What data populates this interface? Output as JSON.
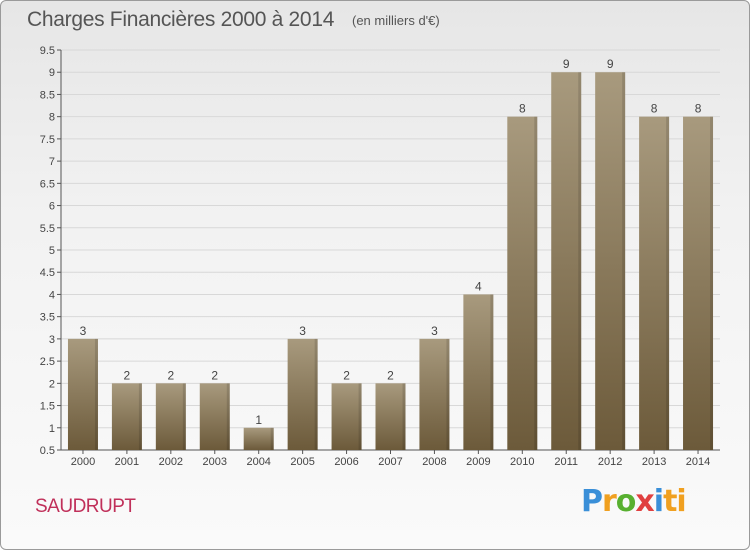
{
  "header": {
    "title": "Charges Financières 2000 à 2014",
    "subtitle": "(en milliers d'€)"
  },
  "footer": {
    "place": "SAUDRUPT",
    "logo": [
      "P",
      "r",
      "o",
      "x",
      "i",
      "ti"
    ]
  },
  "colors": {
    "bar_top": "#a89a7e",
    "bar_bottom": "#6c5a3a",
    "grid": "#d8d8d8",
    "place": "#c0305a"
  },
  "chart_data": {
    "type": "bar",
    "categories": [
      "2000",
      "2001",
      "2002",
      "2003",
      "2004",
      "2005",
      "2006",
      "2007",
      "2008",
      "2009",
      "2010",
      "2011",
      "2012",
      "2013",
      "2014"
    ],
    "values": [
      3,
      2,
      2,
      2,
      1,
      3,
      2,
      2,
      3,
      4,
      8,
      9,
      9,
      8,
      8
    ],
    "data_labels": [
      "3",
      "2",
      "2",
      "2",
      "1",
      "3",
      "2",
      "2",
      "3",
      "4",
      "8",
      "9",
      "9",
      "8",
      "8"
    ],
    "ylim": [
      0.5,
      9.5
    ],
    "yticks": [
      "0.5",
      "1",
      "1.5",
      "2",
      "2.5",
      "3",
      "3.5",
      "4",
      "4.5",
      "5",
      "5.5",
      "6",
      "6.5",
      "7",
      "7.5",
      "8",
      "8.5",
      "9",
      "9.5"
    ],
    "grid": true
  }
}
